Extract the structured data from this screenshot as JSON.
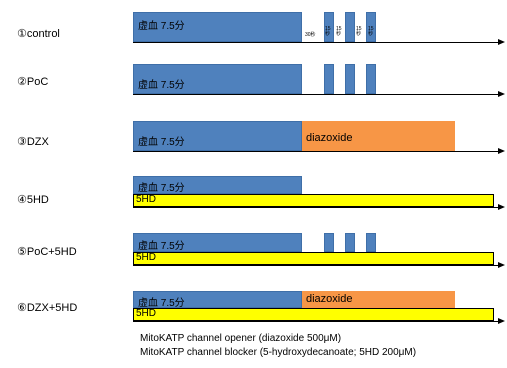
{
  "protocols": [
    {
      "label": "①control"
    },
    {
      "label": "②PoC"
    },
    {
      "label": "③DZX"
    },
    {
      "label": "④5HD"
    },
    {
      "label": "⑤PoC+5HD"
    },
    {
      "label": "⑥DZX+5HD"
    }
  ],
  "ischemia_label": "虚血 7.5分",
  "diazoxide_label": "diazoxide",
  "hd_label": "5HD",
  "control_small": [
    "30秒",
    "15秒",
    "15秒",
    "15秒",
    "15秒"
  ],
  "captions": [
    "MitoKATP channel opener (diazoxide 500μM)",
    "MitoKATP channel blocker (5-hydroxydecanoate; 5HD 200μM)"
  ],
  "colors": {
    "ischemia": "#4f81bd",
    "diazoxide": "#f79646",
    "blocker": "#ffff00"
  }
}
